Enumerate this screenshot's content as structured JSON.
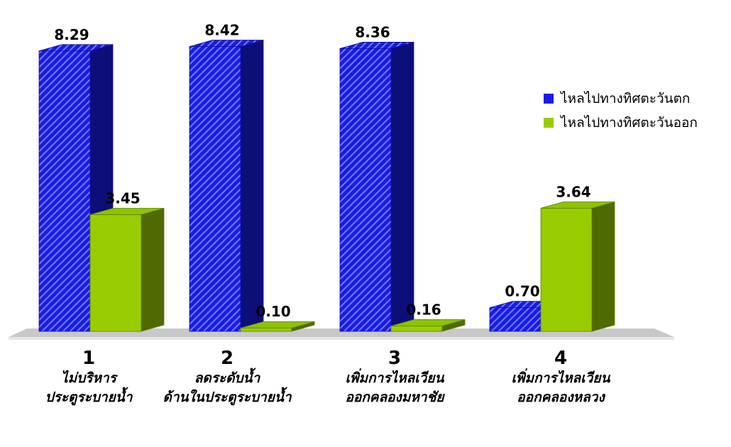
{
  "chart_data": {
    "type": "bar",
    "categories": [
      {
        "num": "1",
        "lines": [
          "ไม่บริหาร",
          "ประตูระบายน้ำ"
        ]
      },
      {
        "num": "2",
        "lines": [
          "ลดระดับน้ำ",
          "ด้านในประตูระบายน้ำ"
        ]
      },
      {
        "num": "3",
        "lines": [
          "เพิ่มการไหลเวียน",
          "ออกคลองมหาชัย"
        ]
      },
      {
        "num": "4",
        "lines": [
          "เพิ่มการไหลเวียน",
          "ออกคลองหลวง"
        ]
      }
    ],
    "series": [
      {
        "name": "ไหลไปทางทิศตะวันตก",
        "values": [
          8.29,
          8.42,
          8.36,
          0.7
        ],
        "labels": [
          "8.29",
          "8.42",
          "8.36",
          "0.70"
        ],
        "color": "#1a1ae6"
      },
      {
        "name": "ไหลไปทางทิศตะวันออก",
        "values": [
          3.45,
          0.1,
          0.16,
          3.64
        ],
        "labels": [
          "3.45",
          "0.10",
          "0.16",
          "3.64"
        ],
        "color": "#99cc00"
      }
    ],
    "ylim": [
      0,
      8.6
    ],
    "grid": false,
    "legend_position": "right",
    "style": "3d"
  }
}
